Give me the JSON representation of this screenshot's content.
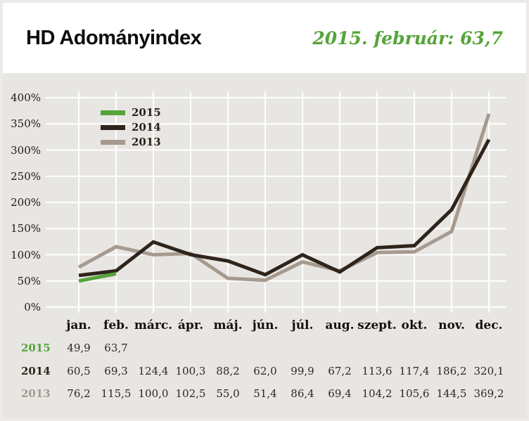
{
  "header": {
    "title": "HD Adományindex",
    "subtitle": "2015. február: 63,7"
  },
  "colors": {
    "page_background": "#ecebe9",
    "card_background": "#ffffff",
    "chart_background": "#e8e6e3",
    "gridline": "#ffffff",
    "accent_green": "#55a43a",
    "dark_brown": "#2e241b",
    "warm_gray": "#a69a8e",
    "text_dark": "#14100d"
  },
  "chart_data": {
    "type": "line",
    "title": "HD Adományindex",
    "xlabel": "",
    "ylabel": "",
    "ylim": [
      0,
      400
    ],
    "grid": true,
    "legend_position": "top-left",
    "yticks": [
      "400%",
      "350%",
      "300%",
      "250%",
      "200%",
      "150%",
      "100%",
      "50%",
      "0%"
    ],
    "categories": [
      "jan.",
      "feb.",
      "márc.",
      "ápr.",
      "máj.",
      "jún.",
      "júl.",
      "aug.",
      "szept.",
      "okt.",
      "nov.",
      "dec."
    ],
    "series": [
      {
        "name": "2015",
        "color": "#55a43a",
        "values": [
          49.9,
          63.7,
          null,
          null,
          null,
          null,
          null,
          null,
          null,
          null,
          null,
          null
        ]
      },
      {
        "name": "2014",
        "color": "#2e241b",
        "values": [
          60.5,
          69.3,
          124.4,
          100.3,
          88.2,
          62.0,
          99.9,
          67.2,
          113.6,
          117.4,
          186.2,
          320.1
        ]
      },
      {
        "name": "2013",
        "color": "#a69a8e",
        "values": [
          76.2,
          115.5,
          100.0,
          102.5,
          55.0,
          51.4,
          86.4,
          69.4,
          104.2,
          105.6,
          144.5,
          369.2
        ]
      }
    ]
  }
}
